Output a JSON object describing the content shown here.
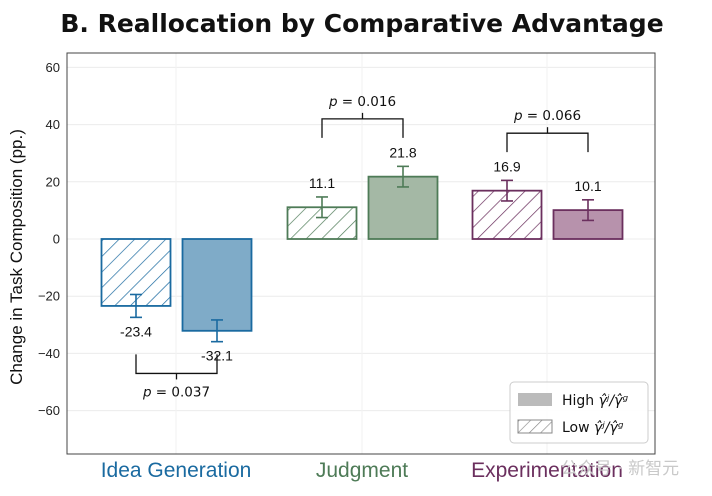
{
  "chart_data": {
    "type": "bar",
    "title": "B. Reallocation by Comparative Advantage",
    "ylabel": "Change in Task Composition (pp.)",
    "ylim": [
      -75,
      65
    ],
    "yticks": [
      60,
      40,
      20,
      0,
      -20,
      -40,
      -60
    ],
    "ytick_labels": [
      "60",
      "40",
      "20",
      "0",
      "−20",
      "−40",
      "−60"
    ],
    "grid": true,
    "categories": [
      "Idea Generation",
      "Judgment",
      "Experimentation"
    ],
    "category_colors": [
      "#1a6aa0",
      "#4e7b57",
      "#6b2f5e"
    ],
    "bar_fill_colors": [
      "#7fabc8",
      "#a4b8a5",
      "#b792ac"
    ],
    "series": [
      {
        "name": "Low γ̂ʲ/γ̂ᵍ",
        "pattern": "hatched",
        "values": [
          -23.4,
          11.1,
          16.9
        ],
        "errors": [
          4.0,
          3.6,
          3.6
        ],
        "value_labels": [
          "-23.4",
          "11.1",
          "16.9"
        ]
      },
      {
        "name": "High γ̂ʲ/γ̂ᵍ",
        "pattern": "solid",
        "values": [
          -32.1,
          21.8,
          10.1
        ],
        "errors": [
          3.8,
          3.6,
          3.6
        ],
        "value_labels": [
          "-32.1",
          "21.8",
          "10.1"
        ]
      }
    ],
    "comparisons": [
      {
        "category": "Idea Generation",
        "label": "p = 0.037",
        "position": "below",
        "y": -47
      },
      {
        "category": "Judgment",
        "label": "p = 0.016",
        "position": "above",
        "y": 42
      },
      {
        "category": "Experimentation",
        "label": "p = 0.066",
        "position": "above",
        "y": 37
      }
    ],
    "legend": {
      "position": "lower-right",
      "entries": [
        {
          "pattern": "solid",
          "label_main": "High ",
          "label_math": "γ̂ʲ/γ̂ᵍ"
        },
        {
          "pattern": "hatched",
          "label_main": "Low ",
          "label_math": "γ̂ʲ/γ̂ᵍ"
        }
      ],
      "swatch_color": "#bbbbbb"
    }
  },
  "watermark": "公众号 · 新智元"
}
